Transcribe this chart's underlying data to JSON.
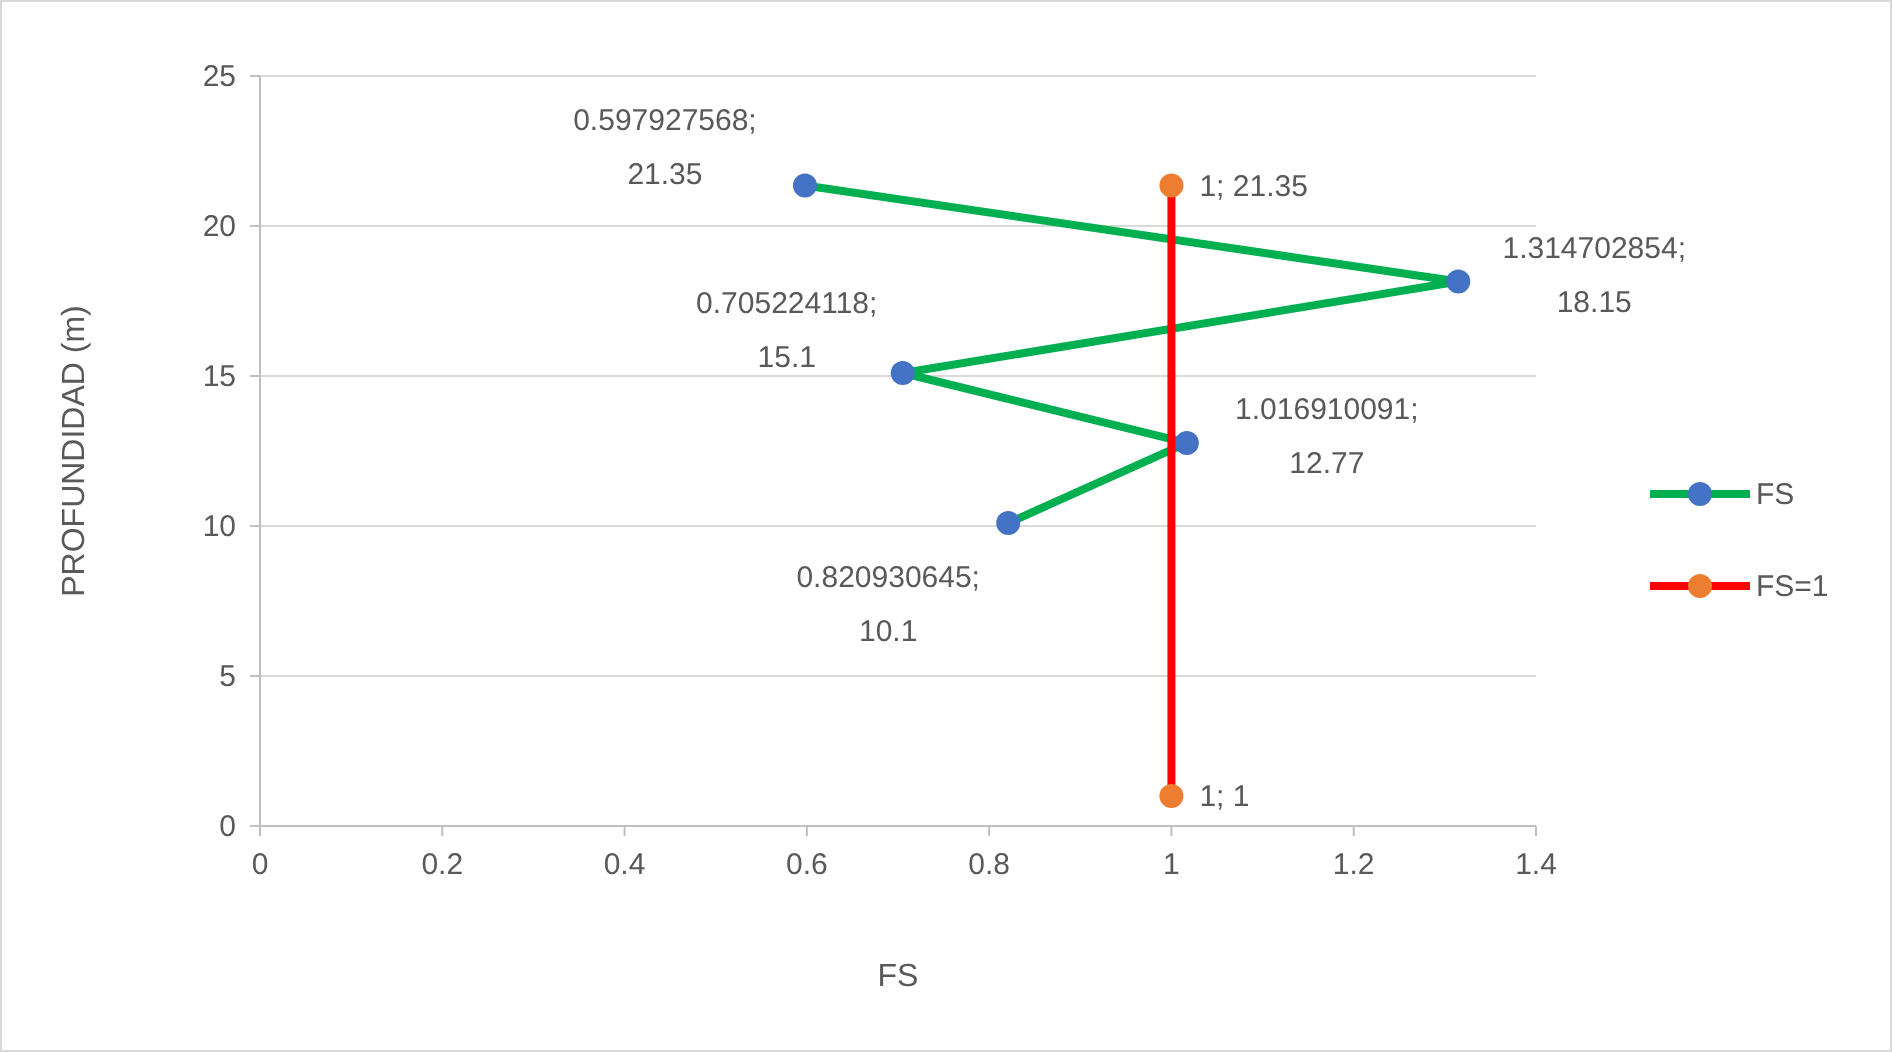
{
  "chart_data": {
    "type": "line",
    "xlabel": "FS",
    "ylabel": "PROFUNDIDAD (m)",
    "xlim": [
      0,
      1.4
    ],
    "xticks": [
      0,
      0.2,
      0.4,
      0.6,
      0.8,
      1,
      1.2,
      1.4
    ],
    "ylim": [
      0,
      25
    ],
    "yticks": [
      0,
      5,
      10,
      15,
      20,
      25
    ],
    "grid": "y",
    "legend": "right",
    "marker": "circle",
    "line_style": "solid",
    "series": [
      {
        "name": "FS",
        "color": "#00b050",
        "colors": [
          "#4472c4",
          "#4472c4",
          "#4472c4",
          "#4472c4",
          "#4472c4"
        ],
        "x": [
          0.820930645,
          1.016910091,
          0.705224118,
          1.314702854,
          0.597927568
        ],
        "values": [
          10.1,
          12.77,
          15.1,
          18.15,
          21.35
        ],
        "value_labels": [
          "0.820930645; 10.1",
          "1.016910091; 12.77",
          "0.705224118; 15.1",
          "1.314702854; 18.15",
          "0.597927568; 21.35"
        ]
      },
      {
        "name": "FS=1",
        "color": "#ff0000",
        "colors": [
          "#ed7d31",
          "#ed7d31"
        ],
        "x": [
          1,
          1
        ],
        "values": [
          1,
          21.35
        ],
        "value_labels": [
          "1; 1",
          "1; 21.35"
        ]
      }
    ]
  }
}
